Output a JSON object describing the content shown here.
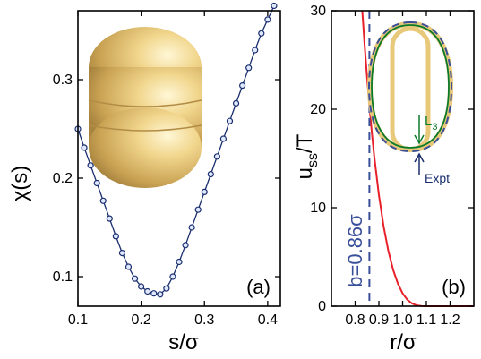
{
  "chart_data": [
    {
      "type": "scatter",
      "panel_label": "(a)",
      "xlabel": "s/σ",
      "ylabel": "χ(s)",
      "xlim": [
        0.1,
        0.42
      ],
      "ylim": [
        0.07,
        0.37
      ],
      "xticks": [
        "0.1",
        "0.2",
        "0.3",
        "0.4"
      ],
      "xtick_values": [
        0.1,
        0.2,
        0.3,
        0.4
      ],
      "yticks": [
        "0.1",
        "0.2",
        "0.3"
      ],
      "ytick_values": [
        0.1,
        0.2,
        0.3
      ],
      "series": [
        {
          "style": "open-circles-with-line",
          "color": "#1a2e6e",
          "x": [
            0.1,
            0.11,
            0.12,
            0.13,
            0.14,
            0.15,
            0.16,
            0.17,
            0.18,
            0.19,
            0.2,
            0.21,
            0.22,
            0.23,
            0.24,
            0.25,
            0.26,
            0.27,
            0.28,
            0.29,
            0.3,
            0.31,
            0.32,
            0.33,
            0.34,
            0.35,
            0.36,
            0.37,
            0.38,
            0.39,
            0.4,
            0.41
          ],
          "y": [
            0.25,
            0.231,
            0.213,
            0.195,
            0.177,
            0.159,
            0.141,
            0.124,
            0.11,
            0.098,
            0.09,
            0.085,
            0.083,
            0.082,
            0.088,
            0.1,
            0.115,
            0.132,
            0.15,
            0.168,
            0.186,
            0.204,
            0.222,
            0.24,
            0.258,
            0.276,
            0.294,
            0.312,
            0.33,
            0.347,
            0.361,
            0.375
          ]
        }
      ],
      "inset": "rendered-dimer-of-three-spheres",
      "inset_color": "#e8c97a"
    },
    {
      "type": "line",
      "panel_label": "(b)",
      "xlabel": "r/σ",
      "ylabel": "u_ss/T",
      "ylabel_main": "u",
      "ylabel_sub": "ss",
      "ylabel_tail": "/T",
      "xlim": [
        0.7,
        1.3
      ],
      "ylim": [
        0,
        30
      ],
      "xticks": [
        "0.8",
        "0.9",
        "1.0",
        "1.1",
        "1.2"
      ],
      "xtick_values": [
        0.8,
        0.9,
        1.0,
        1.1,
        1.2
      ],
      "yticks": [
        "0",
        "10",
        "20",
        "30"
      ],
      "ytick_values": [
        0,
        10,
        20,
        30
      ],
      "series": [
        {
          "style": "solid",
          "color": "#e8202a",
          "x": [
            0.83,
            0.84,
            0.85,
            0.86,
            0.87,
            0.88,
            0.9,
            0.92,
            0.94,
            0.96,
            0.98,
            1.0,
            1.02,
            1.04,
            1.06,
            1.08,
            1.1,
            1.2,
            1.3
          ],
          "y": [
            30.0,
            26.5,
            23.3,
            20.4,
            17.7,
            15.3,
            11.3,
            8.1,
            5.6,
            3.7,
            2.3,
            1.3,
            0.65,
            0.27,
            0.08,
            0.01,
            0.0,
            0.0,
            0.0
          ]
        }
      ],
      "hardcore_line": {
        "x": 0.86,
        "color": "#3a4f9a",
        "label": "b=0.86σ"
      },
      "inset": {
        "labels": [
          "L",
          "Expt"
        ],
        "label_L_sub": "3",
        "colors": {
          "L3": "#0a7a2a",
          "Expt": "#1a2e6e",
          "outline": "#e8c97a"
        }
      }
    }
  ]
}
